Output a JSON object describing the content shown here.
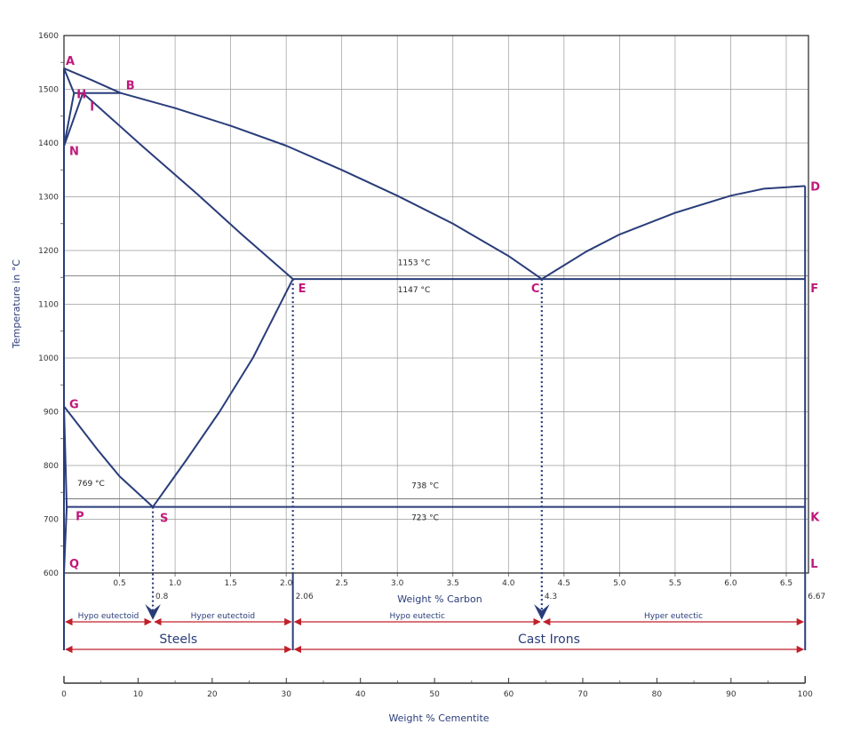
{
  "chart_data": {
    "type": "line",
    "title": "",
    "xlabel": "Weight % Carbon",
    "ylabel": "Temperature in °C",
    "secondary_xlabel": "Weight % Cementite",
    "xlim": [
      0,
      6.7
    ],
    "ylim": [
      600,
      1600
    ],
    "grid": true,
    "x_ticks": [
      {
        "v": 0.5,
        "label": "0.5"
      },
      {
        "v": 1.0,
        "label": "1.0"
      },
      {
        "v": 1.5,
        "label": "1.5"
      },
      {
        "v": 2.0,
        "label": "2.0"
      },
      {
        "v": 2.5,
        "label": "2.5"
      },
      {
        "v": 3.0,
        "label": "3.0"
      },
      {
        "v": 3.5,
        "label": "3.5"
      },
      {
        "v": 4.0,
        "label": "4.0"
      },
      {
        "v": 4.5,
        "label": "4.5"
      },
      {
        "v": 5.0,
        "label": "5.0"
      },
      {
        "v": 5.5,
        "label": "5.5"
      },
      {
        "v": 6.0,
        "label": "6.0"
      },
      {
        "v": 6.5,
        "label": "6.5"
      }
    ],
    "y_ticks": [
      {
        "v": 600,
        "label": "600"
      },
      {
        "v": 700,
        "label": "700"
      },
      {
        "v": 800,
        "label": "800"
      },
      {
        "v": 900,
        "label": "900"
      },
      {
        "v": 1000,
        "label": "1000"
      },
      {
        "v": 1100,
        "label": "1100"
      },
      {
        "v": 1200,
        "label": "1200"
      },
      {
        "v": 1300,
        "label": "1300"
      },
      {
        "v": 1400,
        "label": "1400"
      },
      {
        "v": 1500,
        "label": "1500"
      },
      {
        "v": 1600,
        "label": "1600"
      }
    ],
    "cementite_ticks": [
      {
        "v": 0,
        "label": "0"
      },
      {
        "v": 10,
        "label": "10"
      },
      {
        "v": 20,
        "label": "20"
      },
      {
        "v": 30,
        "label": "30"
      },
      {
        "v": 40,
        "label": "40"
      },
      {
        "v": 50,
        "label": "50"
      },
      {
        "v": 60,
        "label": "60"
      },
      {
        "v": 70,
        "label": "70"
      },
      {
        "v": 80,
        "label": "80"
      },
      {
        "v": 90,
        "label": "90"
      },
      {
        "v": 100,
        "label": "100"
      }
    ],
    "points": [
      {
        "label": "A",
        "x": 0.0,
        "y": 1539
      },
      {
        "label": "B",
        "x": 0.51,
        "y": 1493
      },
      {
        "label": "H",
        "x": 0.09,
        "y": 1493
      },
      {
        "label": "I",
        "x": 0.17,
        "y": 1493
      },
      {
        "label": "N",
        "x": 0.0,
        "y": 1394
      },
      {
        "label": "D",
        "x": 6.67,
        "y": 1320
      },
      {
        "label": "E",
        "x": 2.06,
        "y": 1147
      },
      {
        "label": "C",
        "x": 4.3,
        "y": 1147
      },
      {
        "label": "F",
        "x": 6.67,
        "y": 1147
      },
      {
        "label": "G",
        "x": 0.0,
        "y": 910
      },
      {
        "label": "P",
        "x": 0.025,
        "y": 723
      },
      {
        "label": "S",
        "x": 0.8,
        "y": 723
      },
      {
        "label": "K",
        "x": 6.67,
        "y": 723
      },
      {
        "label": "Q",
        "x": 0.0,
        "y": 600
      },
      {
        "label": "L",
        "x": 6.67,
        "y": 600
      }
    ],
    "series": [
      {
        "id": "liquidus-A-B-C",
        "values": [
          [
            0,
            1539
          ],
          [
            0.25,
            1517
          ],
          [
            0.51,
            1493
          ],
          [
            1.0,
            1465
          ],
          [
            1.5,
            1432
          ],
          [
            2.0,
            1395
          ],
          [
            2.5,
            1350
          ],
          [
            3.0,
            1302
          ],
          [
            3.5,
            1250
          ],
          [
            4.0,
            1190
          ],
          [
            4.3,
            1147
          ]
        ]
      },
      {
        "id": "liquidus-C-D",
        "values": [
          [
            4.3,
            1147
          ],
          [
            4.7,
            1198
          ],
          [
            5.0,
            1230
          ],
          [
            5.5,
            1270
          ],
          [
            6.0,
            1302
          ],
          [
            6.3,
            1315
          ],
          [
            6.67,
            1320
          ]
        ]
      },
      {
        "id": "peritectic-H-B",
        "values": [
          [
            0.09,
            1493
          ],
          [
            0.51,
            1493
          ]
        ]
      },
      {
        "id": "solidus-A-H",
        "values": [
          [
            0.0,
            1539
          ],
          [
            0.09,
            1493
          ]
        ]
      },
      {
        "id": "delta-solvus-H-N",
        "values": [
          [
            0.09,
            1493
          ],
          [
            0.0,
            1394
          ]
        ]
      },
      {
        "id": "gamma-boundary-N-I",
        "values": [
          [
            0.0,
            1394
          ],
          [
            0.17,
            1493
          ]
        ]
      },
      {
        "id": "solidus-I-E",
        "values": [
          [
            0.17,
            1493
          ],
          [
            0.7,
            1395
          ],
          [
            1.2,
            1305
          ],
          [
            1.6,
            1230
          ],
          [
            2.06,
            1147
          ]
        ]
      },
      {
        "id": "eutectic-E-F",
        "values": [
          [
            2.06,
            1147
          ],
          [
            6.67,
            1147
          ]
        ]
      },
      {
        "id": "acm-E-S",
        "values": [
          [
            2.06,
            1147
          ],
          [
            1.7,
            1000
          ],
          [
            1.4,
            900
          ],
          [
            1.1,
            810
          ],
          [
            0.8,
            723
          ]
        ]
      },
      {
        "id": "a3-G-S",
        "values": [
          [
            0.0,
            910
          ],
          [
            0.15,
            870
          ],
          [
            0.3,
            830
          ],
          [
            0.5,
            780
          ],
          [
            0.8,
            723
          ]
        ]
      },
      {
        "id": "solvus-G-P",
        "values": [
          [
            0.0,
            910
          ],
          [
            0.025,
            723
          ]
        ]
      },
      {
        "id": "eutectoid-P-K",
        "values": [
          [
            0.025,
            723
          ],
          [
            6.67,
            723
          ]
        ]
      },
      {
        "id": "solvus-P-Q",
        "values": [
          [
            0.025,
            723
          ],
          [
            0.0,
            600
          ]
        ]
      },
      {
        "id": "right-edge-D-L",
        "values": [
          [
            6.67,
            1320
          ],
          [
            6.67,
            600
          ]
        ]
      }
    ],
    "reference_lines": [
      {
        "id": "ref-1153",
        "y": 1153
      },
      {
        "id": "ref-738",
        "y": 738
      }
    ],
    "annotations": [
      {
        "id": "t1153",
        "text": "1153 °C",
        "x": 3.15,
        "y": 1153,
        "pos": "above"
      },
      {
        "id": "t1147",
        "text": "1147 °C",
        "x": 3.15,
        "y": 1147,
        "pos": "below"
      },
      {
        "id": "t738",
        "text": "738 °C",
        "x": 3.25,
        "y": 738,
        "pos": "above"
      },
      {
        "id": "t723",
        "text": "723 °C",
        "x": 3.25,
        "y": 723,
        "pos": "below"
      },
      {
        "id": "t769",
        "text": "769 °C",
        "x": 0.12,
        "y": 769,
        "pos": "right"
      }
    ],
    "composition_markers": [
      {
        "x": 0.8,
        "label": "0.8",
        "arrow": true
      },
      {
        "x": 2.06,
        "label": "2.06",
        "arrow": false
      },
      {
        "x": 4.3,
        "label": "4.3",
        "arrow": true
      },
      {
        "x": 6.67,
        "label": "6.67",
        "arrow": false
      }
    ],
    "ranges": [
      {
        "from": 0,
        "to": 0.8,
        "label": "Hypo eutectoid"
      },
      {
        "from": 0.8,
        "to": 2.06,
        "label": "Hyper eutectoid"
      },
      {
        "from": 2.06,
        "to": 4.3,
        "label": "Hypo eutectic"
      },
      {
        "from": 4.3,
        "to": 6.67,
        "label": "Hyper eutectic"
      }
    ],
    "groups": [
      {
        "from": 0,
        "to": 2.06,
        "label": "Steels"
      },
      {
        "from": 2.06,
        "to": 6.67,
        "label": "Cast Irons"
      }
    ],
    "colors": {
      "curve": "#2a3d7a",
      "grid": "#9a9a9a",
      "point_label": "#c0187a",
      "range_arrow": "#c0202a"
    }
  }
}
